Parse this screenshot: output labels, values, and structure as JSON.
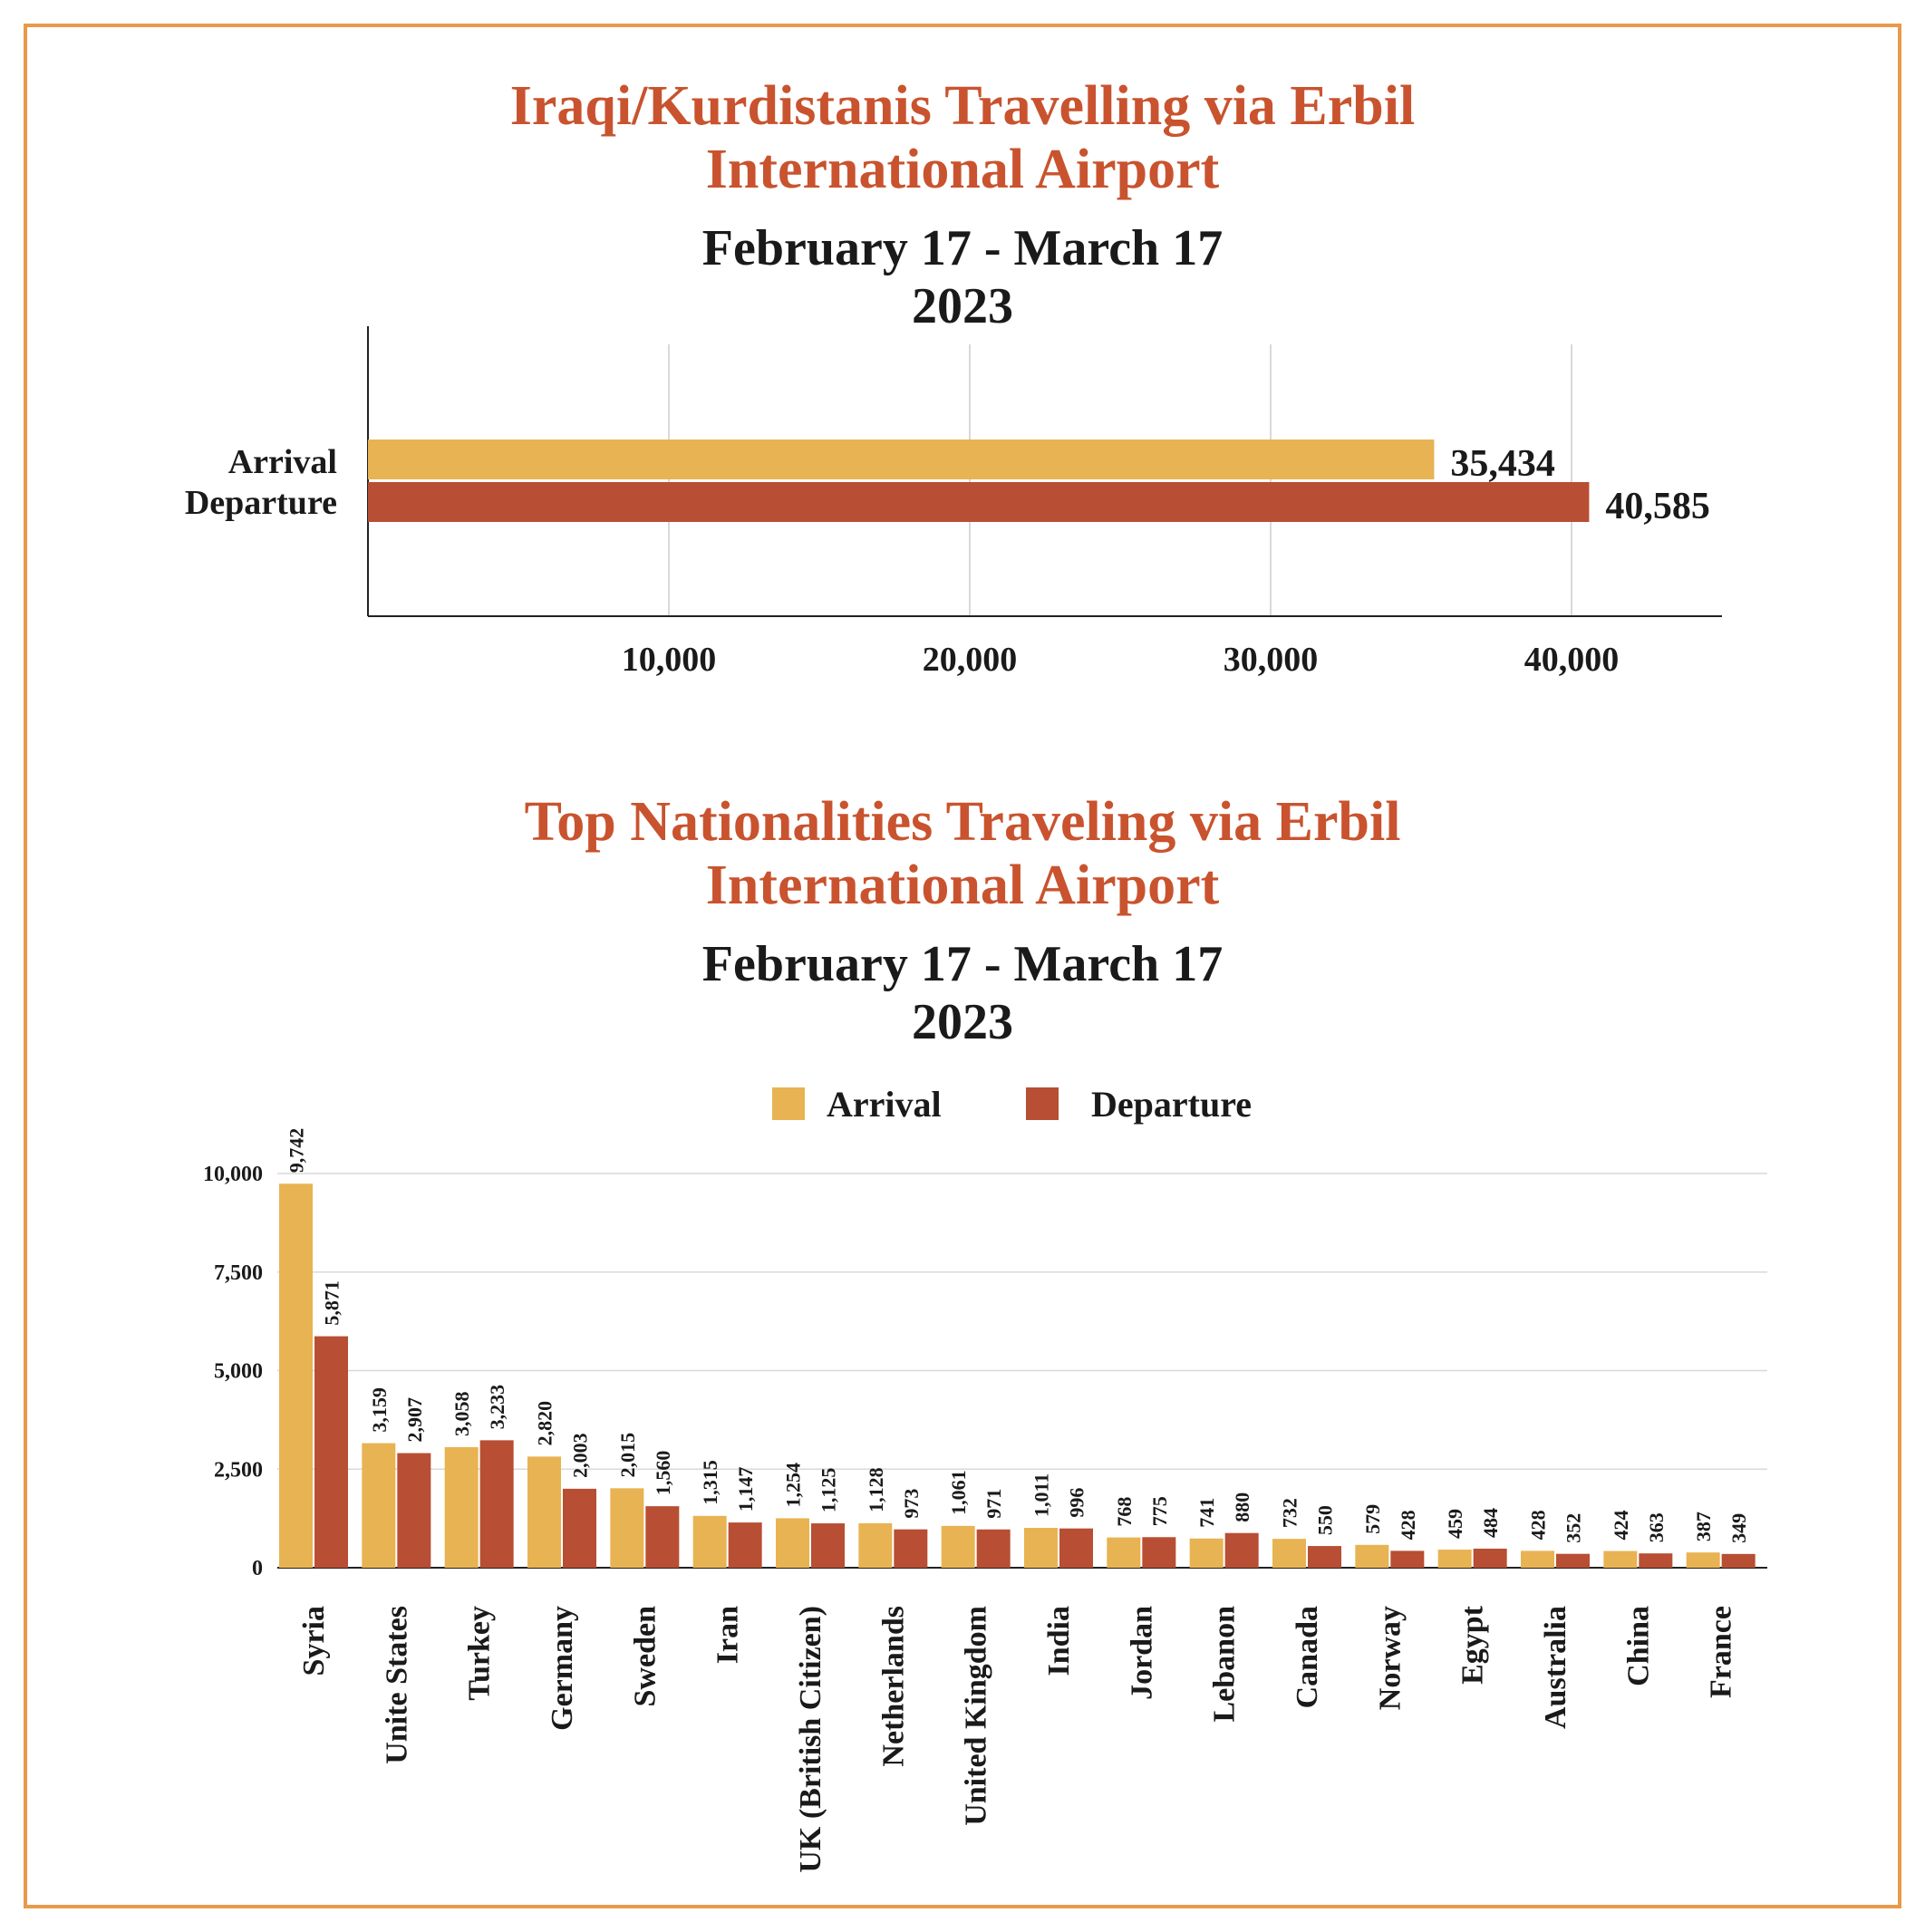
{
  "colors": {
    "arrival": "#E8B352",
    "departure": "#B84E33",
    "title": "#C9532E",
    "frame": "#E89A4A",
    "grid": "#d9d9d9"
  },
  "top": {
    "title_line1": "Iraqi/Kurdistanis Travelling via Erbil",
    "title_line2": "International Airport",
    "subtitle_line1": "February 17 - March 17",
    "subtitle_line2": "2023"
  },
  "bottom": {
    "title_line1": "Top Nationalities Traveling via Erbil",
    "title_line2": "International Airport",
    "subtitle_line1": "February 17 - March 17",
    "subtitle_line2": "2023"
  },
  "chart_data": [
    {
      "type": "bar",
      "orientation": "horizontal",
      "title": "Iraqi/Kurdistanis Travelling via Erbil International Airport",
      "subtitle": "February 17 - March 17 2023",
      "categories": [
        "Arrival",
        "Departure"
      ],
      "values": [
        35434,
        40585
      ],
      "value_labels": [
        "35,434",
        "40,585"
      ],
      "xticks": [
        10000,
        20000,
        30000,
        40000
      ],
      "xtick_labels": [
        "10,000",
        "20,000",
        "30,000",
        "40,000"
      ],
      "xlim": [
        0,
        45000
      ]
    },
    {
      "type": "bar",
      "title": "Top Nationalities Traveling via Erbil International Airport",
      "subtitle": "February 17 - March 17 2023",
      "legend": [
        "Arrival",
        "Departure"
      ],
      "categories": [
        "Syria",
        "Unite States",
        "Turkey",
        "Germany",
        "Sweden",
        "Iran",
        "UK (British Citizen)",
        "Netherlands",
        "United Kingdom",
        "India",
        "Jordan",
        "Lebanon",
        "Canada",
        "Norway",
        "Egypt",
        "Australia",
        "China",
        "France"
      ],
      "series": [
        {
          "name": "Arrival",
          "values": [
            9742,
            3159,
            3058,
            2820,
            2015,
            1315,
            1254,
            1128,
            1061,
            1011,
            768,
            741,
            732,
            579,
            459,
            428,
            424,
            387
          ],
          "labels": [
            "9,742",
            "3,159",
            "3,058",
            "2,820",
            "2,015",
            "1,315",
            "1,254",
            "1,128",
            "1,061",
            "1,011",
            "768",
            "741",
            "732",
            "579",
            "459",
            "428",
            "424",
            "387"
          ]
        },
        {
          "name": "Departure",
          "values": [
            5871,
            2907,
            3233,
            2003,
            1560,
            1147,
            1125,
            973,
            971,
            996,
            775,
            880,
            550,
            428,
            484,
            352,
            363,
            349
          ],
          "labels": [
            "5,871",
            "2,907",
            "3,233",
            "2,003",
            "1,560",
            "1,147",
            "1,125",
            "973",
            "971",
            "996",
            "775",
            "880",
            "550",
            "428",
            "484",
            "352",
            "363",
            "349"
          ]
        }
      ],
      "yticks": [
        0,
        2500,
        5000,
        7500,
        10000
      ],
      "ytick_labels": [
        "0",
        "2,500",
        "5,000",
        "7,500",
        "10,000"
      ],
      "ylim": [
        0,
        10000
      ]
    }
  ]
}
